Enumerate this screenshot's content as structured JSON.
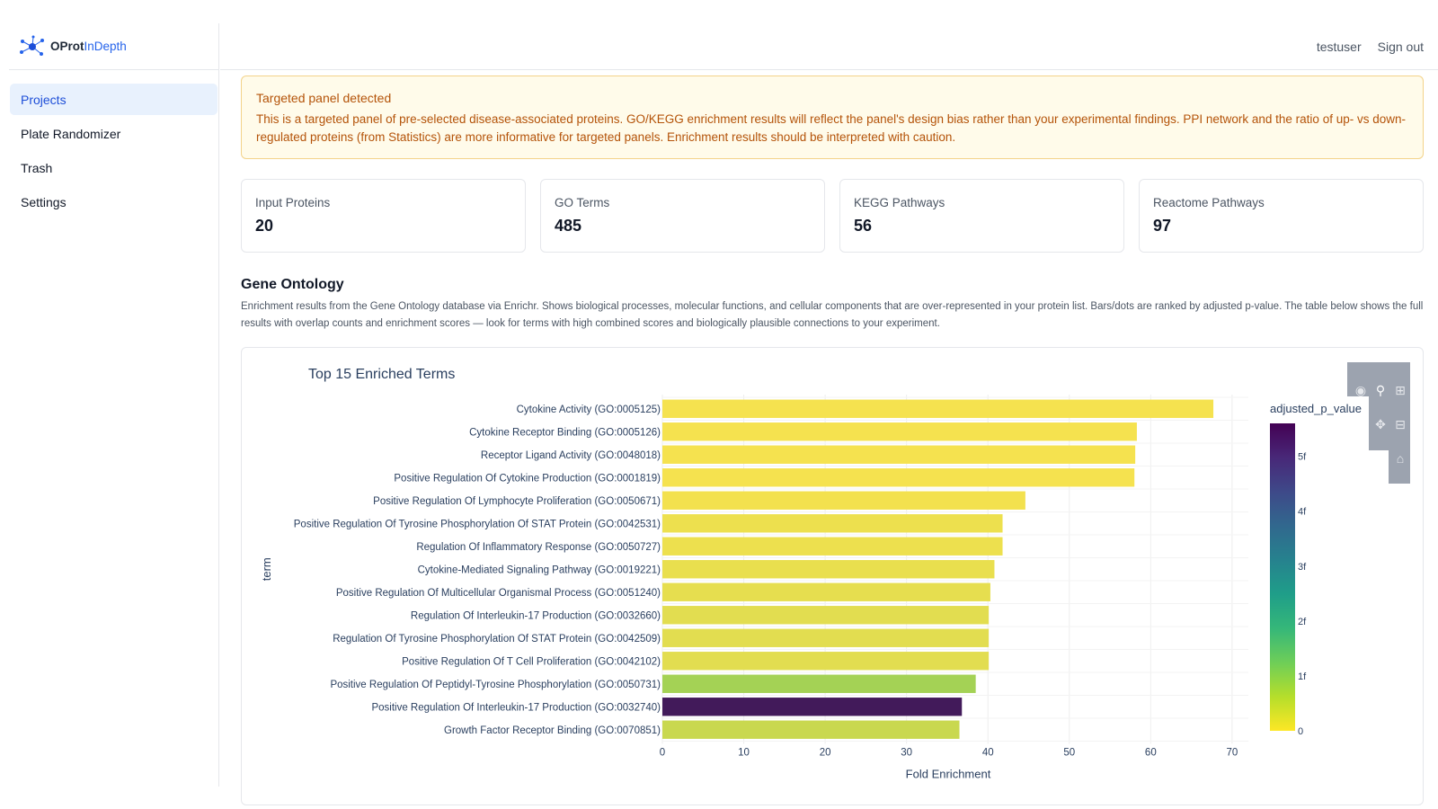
{
  "brand": {
    "name_part1": "OProt",
    "name_part2": "InDepth"
  },
  "user": {
    "username": "testuser",
    "signout_label": "Sign out"
  },
  "nav": {
    "items": [
      {
        "label": "Projects",
        "active": true
      },
      {
        "label": "Plate Randomizer",
        "active": false
      },
      {
        "label": "Trash",
        "active": false
      },
      {
        "label": "Settings",
        "active": false
      }
    ]
  },
  "alert": {
    "title": "Targeted panel detected",
    "body": "This is a targeted panel of pre-selected disease-associated proteins. GO/KEGG enrichment results will reflect the panel's design bias rather than your experimental findings. PPI network and the ratio of up- vs down-regulated proteins (from Statistics) are more informative for targeted panels. Enrichment results should be interpreted with caution."
  },
  "stats": [
    {
      "label": "Input Proteins",
      "value": "20"
    },
    {
      "label": "GO Terms",
      "value": "485"
    },
    {
      "label": "KEGG Pathways",
      "value": "56"
    },
    {
      "label": "Reactome Pathways",
      "value": "97"
    }
  ],
  "section": {
    "title": "Gene Ontology",
    "description": "Enrichment results from the Gene Ontology database via Enrichr. Shows biological processes, molecular functions, and cellular components that are over-represented in your protein list. Bars/dots are ranked by adjusted p-value. The table below shows the full results with overlap counts and enrichment scores — look for terms with high combined scores and biologically plausible connections to your experiment."
  },
  "chart_data": {
    "type": "bar",
    "orientation": "horizontal",
    "title": "Top 15 Enriched Terms",
    "xlabel": "Fold Enrichment",
    "ylabel": "term",
    "xlim": [
      0,
      72
    ],
    "xticks": [
      0,
      10,
      20,
      30,
      40,
      50,
      60,
      70
    ],
    "colorbar": {
      "title": "adjusted_p_value",
      "ticks": [
        "0",
        "1f",
        "2f",
        "3f",
        "4f",
        "5f"
      ],
      "range": [
        0,
        5.6
      ]
    },
    "categories": [
      "Cytokine Activity (GO:0005125)",
      "Cytokine Receptor Binding (GO:0005126)",
      "Receptor Ligand Activity (GO:0048018)",
      "Positive Regulation Of Cytokine Production (GO:0001819)",
      "Positive Regulation Of Lymphocyte Proliferation (GO:0050671)",
      "Positive Regulation Of Tyrosine Phosphorylation Of STAT Protein (GO:0042531)",
      "Regulation Of Inflammatory Response (GO:0050727)",
      "Cytokine-Mediated Signaling Pathway (GO:0019221)",
      "Positive Regulation Of Multicellular Organismal Process (GO:0051240)",
      "Regulation Of Interleukin-17 Production (GO:0032660)",
      "Regulation Of Tyrosine Phosphorylation Of STAT Protein (GO:0042509)",
      "Positive Regulation Of T Cell Proliferation (GO:0042102)",
      "Positive Regulation Of Peptidyl-Tyrosine Phosphorylation (GO:0050731)",
      "Positive Regulation Of Interleukin-17 Production (GO:0032740)",
      "Growth Factor Receptor Binding (GO:0070851)"
    ],
    "values": [
      67.7,
      58.3,
      58.1,
      58.0,
      44.6,
      41.8,
      41.8,
      40.8,
      40.3,
      40.1,
      40.1,
      40.1,
      38.5,
      36.8,
      36.5
    ],
    "colors": [
      "#f5e24f",
      "#f5e24f",
      "#f5e24f",
      "#f5e24f",
      "#f3e14e",
      "#ede04e",
      "#ede04e",
      "#e9df4e",
      "#e6de4f",
      "#e2dd50",
      "#e2dd50",
      "#e2dd50",
      "#a4d255",
      "#421a5a",
      "#c9d84f"
    ]
  }
}
